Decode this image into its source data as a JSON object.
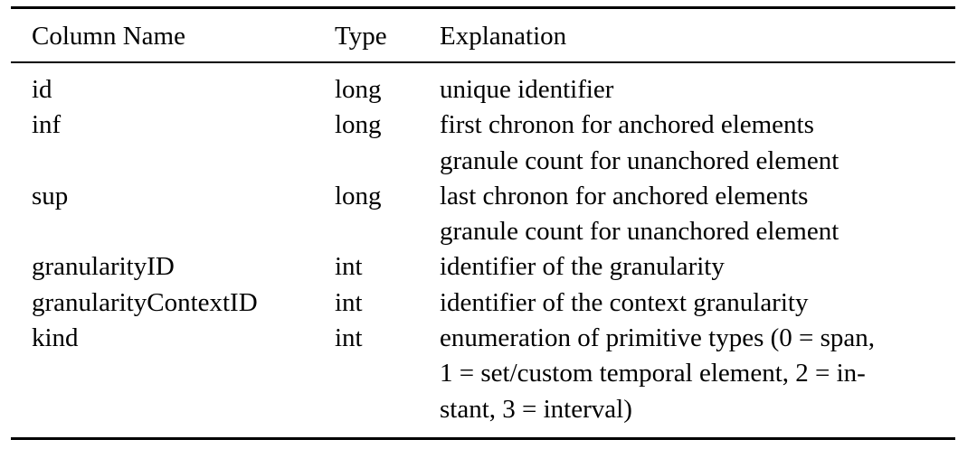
{
  "table": {
    "headers": {
      "column_name": "Column Name",
      "type": "Type",
      "explanation": "Explanation"
    },
    "rows": [
      {
        "name": "id",
        "type": "long",
        "explanation": [
          "unique identifier"
        ]
      },
      {
        "name": "inf",
        "type": "long",
        "explanation": [
          "first chronon for anchored elements",
          "granule count for unanchored element"
        ]
      },
      {
        "name": "sup",
        "type": "long",
        "explanation": [
          "last chronon for anchored elements",
          "granule count for unanchored element"
        ]
      },
      {
        "name": "granularityID",
        "type": "int",
        "explanation": [
          "identifier of the granularity"
        ]
      },
      {
        "name": "granularityContextID",
        "type": "int",
        "explanation": [
          "identifier of the context granularity"
        ]
      },
      {
        "name": "kind",
        "type": "int",
        "explanation": [
          "enumeration of primitive types (0 = span,",
          "1 = set/custom temporal element, 2 = in-",
          "stant, 3 = interval)"
        ]
      }
    ]
  }
}
